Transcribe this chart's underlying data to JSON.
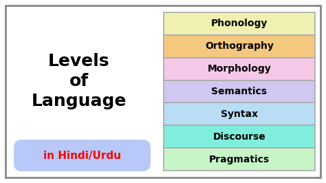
{
  "title_lines": [
    "Levels",
    "of",
    "Language"
  ],
  "subtitle": "in Hindi/Urdu",
  "subtitle_color": "#ff0000",
  "subtitle_bg": "#b8c8f8",
  "levels": [
    "Phonology",
    "Orthography",
    "Morphology",
    "Semantics",
    "Syntax",
    "Discourse",
    "Pragmatics"
  ],
  "level_colors": [
    "#f0f0b0",
    "#f5c880",
    "#f5c8e8",
    "#d0c8f0",
    "#b8ddf5",
    "#80eedd",
    "#c8f5c8"
  ],
  "background": "#ffffff",
  "border_color": "#888888",
  "text_color": "#000000",
  "fig_width": 4.74,
  "fig_height": 2.66,
  "dpi": 100
}
